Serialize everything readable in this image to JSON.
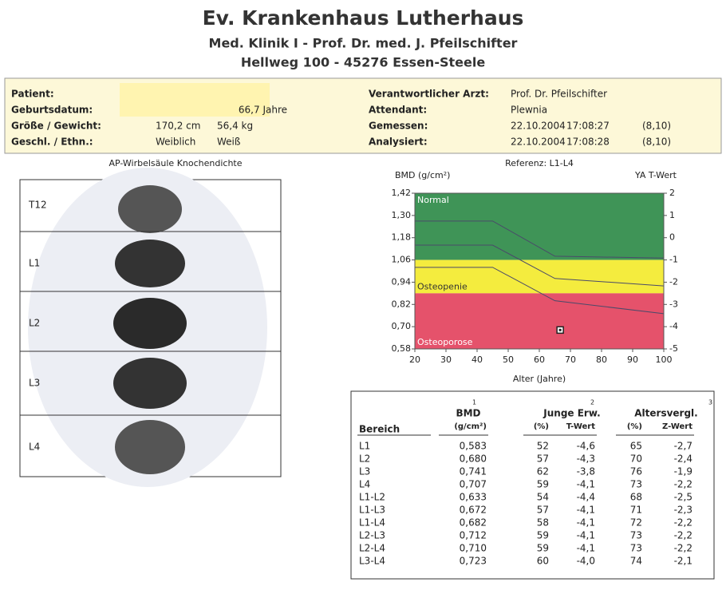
{
  "header": {
    "title": "Ev. Krankenhaus Lutherhaus",
    "lines": [
      "Med. Klinik I  -  Prof. Dr. med. J. Pfeilschifter",
      "Hellweg 100  -  45276 Essen-Steele"
    ]
  },
  "patient": {
    "left": [
      [
        "Patient:"
      ],
      [
        "Geburtsdatum:",
        "66,7 Jahre"
      ],
      [
        "Größe / Gewicht:",
        "170,2 cm",
        "56,4 kg"
      ],
      [
        "Geschl. / Ethn.:",
        "Weiblich",
        "Weiß"
      ]
    ],
    "right": [
      [
        "Verantwortlicher Arzt:",
        "Prof. Dr. Pfeilschifter"
      ],
      [
        "Attendant:",
        "Plewnia"
      ],
      [
        "Gemessen:",
        "22.10.2004",
        "17:08:27",
        "(8,10)"
      ],
      [
        "Analysiert:",
        "22.10.2004",
        "17:08:28",
        "(8,10)"
      ]
    ]
  },
  "image": {
    "title": "AP-Wirbelsäule Knochendichte",
    "regions": [
      "T12",
      "L1",
      "L2",
      "L3",
      "L4"
    ]
  },
  "chart_data": {
    "type": "line",
    "title": "Referenz: L1-L4",
    "y_label": "BMD (g/cm²)",
    "y2_label": "YA T-Wert",
    "x_label": "Alter (Jahre)",
    "xlim": [
      20,
      100
    ],
    "xticks": [
      20,
      30,
      40,
      50,
      60,
      70,
      80,
      90,
      100
    ],
    "ylim": [
      0.58,
      1.42
    ],
    "yticks": [
      {
        "value": 1.42,
        "label": "1,42"
      },
      {
        "value": 1.3,
        "label": "1,30"
      },
      {
        "value": 1.18,
        "label": "1,18"
      },
      {
        "value": 1.06,
        "label": "1,06"
      },
      {
        "value": 0.94,
        "label": "0,94"
      },
      {
        "value": 0.82,
        "label": "0,82"
      },
      {
        "value": 0.7,
        "label": "0,70"
      },
      {
        "value": 0.58,
        "label": "0,58"
      }
    ],
    "y2lim": [
      -5,
      2
    ],
    "y2ticks": [
      2,
      1,
      0,
      -1,
      -2,
      -3,
      -4,
      -5
    ],
    "zones": [
      {
        "label": "Normal",
        "from": 1.06,
        "to": 1.42,
        "color": "#3f9457"
      },
      {
        "label": "Osteopenie",
        "from": 0.88,
        "to": 1.06,
        "color": "#f4ec3e"
      },
      {
        "label": "Osteoporose",
        "from": 0.58,
        "to": 0.88,
        "color": "#e5526b"
      }
    ],
    "series": [
      {
        "color": "#4a4a6a",
        "x": [
          20,
          45,
          65,
          100
        ],
        "values": [
          1.27,
          1.27,
          1.08,
          1.07
        ]
      },
      {
        "color": "#4a4a6a",
        "x": [
          20,
          45,
          65,
          100
        ],
        "values": [
          1.14,
          1.14,
          0.96,
          0.92
        ]
      },
      {
        "color": "#4a4a6a",
        "x": [
          20,
          45,
          65,
          100
        ],
        "values": [
          1.02,
          1.02,
          0.84,
          0.77
        ]
      }
    ],
    "points": {
      "x": [
        66.7
      ],
      "values": [
        0.682
      ]
    }
  },
  "table": {
    "superscripts": [
      "1",
      "2",
      "3"
    ],
    "groups": [
      "BMD",
      "Junge Erw.",
      "Altersvergl."
    ],
    "columns": [
      "Bereich",
      "(g/cm²)",
      "(%)",
      "T-Wert",
      "(%)",
      "Z-Wert"
    ],
    "rows": [
      [
        "L1",
        "0,583",
        "52",
        "-4,6",
        "65",
        "-2,7"
      ],
      [
        "L2",
        "0,680",
        "57",
        "-4,3",
        "70",
        "-2,4"
      ],
      [
        "L3",
        "0,741",
        "62",
        "-3,8",
        "76",
        "-1,9"
      ],
      [
        "L4",
        "0,707",
        "59",
        "-4,1",
        "73",
        "-2,2"
      ],
      [
        "L1-L2",
        "0,633",
        "54",
        "-4,4",
        "68",
        "-2,5"
      ],
      [
        "L1-L3",
        "0,672",
        "57",
        "-4,1",
        "71",
        "-2,3"
      ],
      [
        "L1-L4",
        "0,682",
        "58",
        "-4,1",
        "72",
        "-2,2"
      ],
      [
        "L2-L3",
        "0,712",
        "59",
        "-4,1",
        "73",
        "-2,2"
      ],
      [
        "L2-L4",
        "0,710",
        "59",
        "-4,1",
        "73",
        "-2,2"
      ],
      [
        "L3-L4",
        "0,723",
        "60",
        "-4,0",
        "74",
        "-2,1"
      ]
    ]
  }
}
